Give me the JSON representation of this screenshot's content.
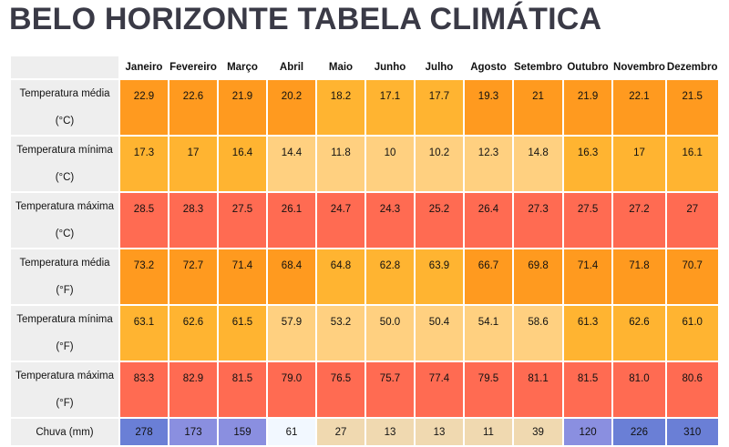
{
  "title": "BELO HORIZONTE TABELA CLIMÁTICA",
  "chart_data": {
    "type": "table",
    "title": "BELO HORIZONTE TABELA CLIMÁTICA",
    "columns": [
      "Janeiro",
      "Fevereiro",
      "Março",
      "Abril",
      "Maio",
      "Junho",
      "Julho",
      "Agosto",
      "Setembro",
      "Outubro",
      "Novembro",
      "Dezembro"
    ],
    "rows": [
      {
        "label": "Temperatura média",
        "unit": "(°C)",
        "values": [
          "22.9",
          "22.6",
          "21.9",
          "20.2",
          "18.2",
          "17.1",
          "17.7",
          "19.3",
          "21",
          "21.9",
          "22.1",
          "21.5"
        ],
        "colors": [
          "#ff9a1f",
          "#ff9a1f",
          "#ff9a1f",
          "#ff9a1f",
          "#ffb431",
          "#ffb431",
          "#ffb431",
          "#ff9a1f",
          "#ff9a1f",
          "#ff9a1f",
          "#ff9a1f",
          "#ff9a1f"
        ]
      },
      {
        "label": "Temperatura mínima",
        "unit": "(°C)",
        "values": [
          "17.3",
          "17",
          "16.4",
          "14.4",
          "11.8",
          "10",
          "10.2",
          "12.3",
          "14.8",
          "16.3",
          "17",
          "16.1"
        ],
        "colors": [
          "#ffb431",
          "#ffb431",
          "#ffb431",
          "#ffd080",
          "#ffd080",
          "#ffd080",
          "#ffd080",
          "#ffd080",
          "#ffd080",
          "#ffb431",
          "#ffb431",
          "#ffb431"
        ]
      },
      {
        "label": "Temperatura máxima",
        "unit": "(°C)",
        "values": [
          "28.5",
          "28.3",
          "27.5",
          "26.1",
          "24.7",
          "24.3",
          "25.2",
          "26.4",
          "27.3",
          "27.5",
          "27.2",
          "27"
        ],
        "colors": [
          "#ff6b52",
          "#ff6b52",
          "#ff6b52",
          "#ff6b52",
          "#ff6b52",
          "#ff6b52",
          "#ff6b52",
          "#ff6b52",
          "#ff6b52",
          "#ff6b52",
          "#ff6b52",
          "#ff6b52"
        ]
      },
      {
        "label": "Temperatura média",
        "unit": "(°F)",
        "values": [
          "73.2",
          "72.7",
          "71.4",
          "68.4",
          "64.8",
          "62.8",
          "63.9",
          "66.7",
          "69.8",
          "71.4",
          "71.8",
          "70.7"
        ],
        "colors": [
          "#ff9a1f",
          "#ff9a1f",
          "#ff9a1f",
          "#ff9a1f",
          "#ffb431",
          "#ffb431",
          "#ffb431",
          "#ff9a1f",
          "#ff9a1f",
          "#ff9a1f",
          "#ff9a1f",
          "#ff9a1f"
        ]
      },
      {
        "label": "Temperatura mínima",
        "unit": "(°F)",
        "values": [
          "63.1",
          "62.6",
          "61.5",
          "57.9",
          "53.2",
          "50.0",
          "50.4",
          "54.1",
          "58.6",
          "61.3",
          "62.6",
          "61.0"
        ],
        "colors": [
          "#ffb431",
          "#ffb431",
          "#ffb431",
          "#ffd080",
          "#ffd080",
          "#ffd080",
          "#ffd080",
          "#ffd080",
          "#ffd080",
          "#ffb431",
          "#ffb431",
          "#ffb431"
        ]
      },
      {
        "label": "Temperatura máxima",
        "unit": "(°F)",
        "values": [
          "83.3",
          "82.9",
          "81.5",
          "79.0",
          "76.5",
          "75.7",
          "77.4",
          "79.5",
          "81.1",
          "81.5",
          "81.0",
          "80.6"
        ],
        "colors": [
          "#ff6b52",
          "#ff6b52",
          "#ff6b52",
          "#ff6b52",
          "#ff6b52",
          "#ff6b52",
          "#ff6b52",
          "#ff6b52",
          "#ff6b52",
          "#ff6b52",
          "#ff6b52",
          "#ff6b52"
        ]
      },
      {
        "label": "Chuva (mm)",
        "unit": "",
        "values": [
          "278",
          "173",
          "159",
          "61",
          "27",
          "13",
          "13",
          "11",
          "39",
          "120",
          "226",
          "310"
        ],
        "colors": [
          "#6a7fd6",
          "#8a8fe0",
          "#8a8fe0",
          "#f2f8ff",
          "#f0d9b0",
          "#f0d9b0",
          "#f0d9b0",
          "#f0d9b0",
          "#f0d9b0",
          "#8a8fe0",
          "#6a7fd6",
          "#6a7fd6"
        ]
      }
    ]
  }
}
